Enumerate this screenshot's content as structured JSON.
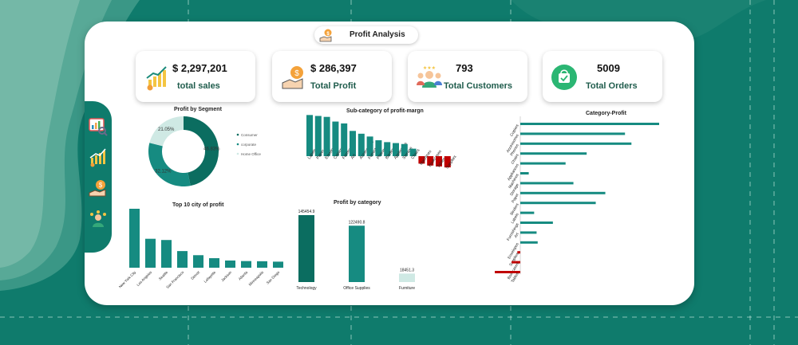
{
  "header": {
    "title": "Profit Analysis",
    "icon": "hand-coin-icon"
  },
  "kpis": [
    {
      "value": "$ 2,297,201",
      "label": "total sales",
      "icon": "sales-growth-icon"
    },
    {
      "value": "$ 286,397",
      "label": "Total Profit",
      "icon": "profit-bag-icon"
    },
    {
      "value": "793",
      "label": "Total Customers",
      "icon": "customers-icon"
    },
    {
      "value": "5009",
      "label": "Total Orders",
      "icon": "shopping-bag-icon"
    }
  ],
  "sidebar": [
    {
      "name": "analytics-icon"
    },
    {
      "name": "growth-icon"
    },
    {
      "name": "profit-icon"
    },
    {
      "name": "customers-icon"
    }
  ],
  "colors": {
    "teal": "#0f7b6c",
    "dark_teal": "#0b6d60",
    "bar": "#168b81",
    "light_teal": "#cfe9e4",
    "negative": "#c00000"
  },
  "charts": {
    "segment": {
      "title": "Profit by Segment",
      "chart_data": {
        "type": "pie",
        "categories": [
          "Consumer",
          "corporate",
          "Home Office"
        ],
        "values": [
          46.8,
          32.1,
          21.05
        ],
        "labels": [
          "46.83%",
          "32.12%",
          "21.05%"
        ],
        "legend": "right"
      }
    },
    "subcategory": {
      "title": "Sub-category of profit-margn",
      "chart_data": {
        "type": "bar",
        "categories": [
          "Labels",
          "Paper",
          "Envelopes",
          "Copiers",
          "Fasteners",
          "Art",
          "Accessories",
          "Furnishings",
          "Phones",
          "Binders",
          "Appliances",
          "Storage",
          "Chairs",
          "Machines",
          "Bookcases",
          "Tables",
          "Supplies"
        ],
        "values": [
          44,
          43,
          42,
          37,
          35,
          27,
          24,
          21,
          17,
          15,
          14,
          13,
          8,
          -8,
          -10,
          -11,
          -12
        ],
        "ylim": [
          -14,
          46
        ]
      }
    },
    "category_profit": {
      "title": "Category-Profit",
      "chart_data": {
        "type": "bar",
        "orientation": "horizontal",
        "categories": [
          "Copiers",
          "Accessories",
          "Phones",
          "Chairs",
          "Appliances",
          "Machines",
          "Storage",
          "Paper",
          "Binders",
          "Labels",
          "Furnishings",
          "Art",
          "Envelopes",
          "Supplies",
          "Bookcases",
          "Tables"
        ],
        "values": [
          55617,
          41937,
          44516,
          26590,
          18138,
          3385,
          21279,
          34054,
          30222,
          5546,
          13059,
          6528,
          6964,
          -1189,
          -3473,
          -17725
        ]
      }
    },
    "top_city": {
      "title": "Top 10 city of profit",
      "chart_data": {
        "type": "bar",
        "categories": [
          "New York City",
          "Los Angeles",
          "Seattle",
          "San Francisco",
          "Detroit",
          "Lafayette",
          "Jackson",
          "Atlanta",
          "Minneapolis",
          "San Diego"
        ],
        "values": [
          62037,
          30441,
          29156,
          17508,
          13181,
          10019,
          7582,
          6994,
          6824,
          6378
        ]
      }
    },
    "by_category": {
      "title": "Profit by category",
      "chart_data": {
        "type": "bar",
        "categories": [
          "Technology",
          "Office Supplies",
          "Furniture"
        ],
        "values": [
          145454.9,
          122490.8,
          18451.3
        ],
        "labels": [
          "145454.9",
          "122490.8",
          "18451.3"
        ]
      }
    }
  }
}
